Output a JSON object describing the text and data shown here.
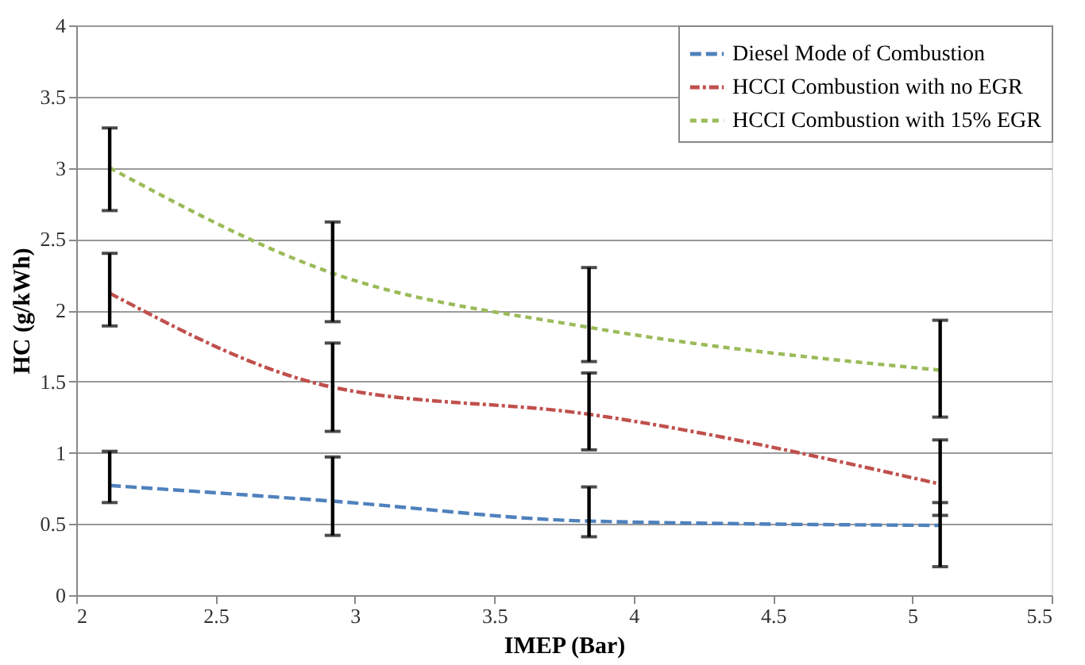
{
  "chart_data": {
    "type": "line",
    "xlabel": "IMEP (Bar)",
    "ylabel": "HC (g/kWh)",
    "x": [
      2.12,
      2.92,
      3.84,
      5.1
    ],
    "series": [
      {
        "name": "Diesel Mode of Combustion",
        "color": "#4f81bd",
        "line_style": "dashed",
        "values": [
          0.77,
          0.66,
          0.52,
          0.49
        ],
        "errors": [
          [
            0.65,
            1.01
          ],
          [
            0.42,
            0.97
          ],
          [
            0.41,
            0.76
          ],
          [
            0.2,
            0.65
          ]
        ]
      },
      {
        "name": "HCCI Combustion with no EGR",
        "color": "#c0504d",
        "line_style": "dashdot",
        "values": [
          2.12,
          1.46,
          1.27,
          0.78
        ],
        "errors": [
          [
            1.89,
            2.4
          ],
          [
            1.15,
            1.77
          ],
          [
            1.02,
            1.56
          ],
          [
            0.56,
            1.09
          ]
        ]
      },
      {
        "name": "HCCI Combustion with 15% EGR",
        "color": "#9bbb59",
        "line_style": "dotted",
        "values": [
          3.0,
          2.26,
          1.88,
          1.58
        ],
        "errors": [
          [
            2.7,
            3.28
          ],
          [
            1.92,
            2.62
          ],
          [
            1.64,
            2.3
          ],
          [
            1.25,
            1.93
          ]
        ]
      }
    ],
    "xlim": [
      2,
      5.5
    ],
    "xticks": [
      2,
      2.5,
      3,
      3.5,
      4,
      4.5,
      5,
      5.5
    ],
    "ylim": [
      0,
      4
    ],
    "yticks": [
      0,
      0.5,
      1,
      1.5,
      2,
      2.5,
      3,
      3.5,
      4
    ],
    "grid": "y",
    "legend": "top right",
    "marker": "none"
  }
}
